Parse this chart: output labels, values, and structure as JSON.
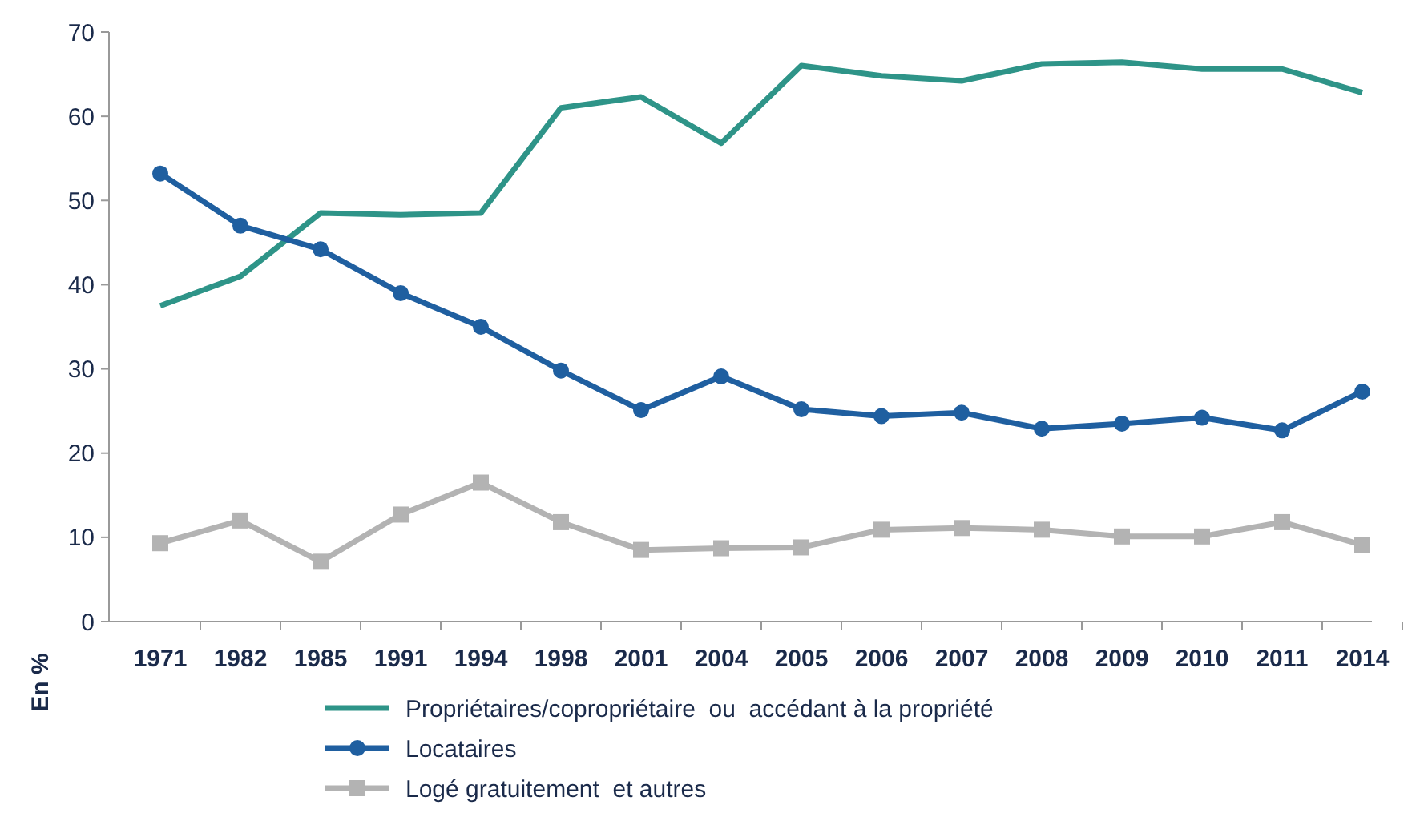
{
  "chart_data": {
    "type": "line",
    "ylabel": "En %",
    "categories": [
      "1971",
      "1982",
      "1985",
      "1991",
      "1994",
      "1998",
      "2001",
      "2004",
      "2005",
      "2006",
      "2007",
      "2008",
      "2009",
      "2010",
      "2011",
      "2014"
    ],
    "series": [
      {
        "name": "Propriétaires/copropriétaire  ou  accédant à la propriété",
        "color": "#2e9488",
        "marker": "none",
        "values": [
          37.5,
          41,
          48.5,
          48.3,
          48.5,
          61,
          62.3,
          56.8,
          66,
          64.8,
          64.2,
          66.2,
          66.4,
          65.6,
          65.6,
          62.8
        ]
      },
      {
        "name": "Locataires",
        "color": "#1f5fa0",
        "marker": "circle",
        "values": [
          53.2,
          47,
          44.2,
          39,
          35,
          29.8,
          25.1,
          29.1,
          25.2,
          24.4,
          24.8,
          22.9,
          23.5,
          24.2,
          22.7,
          27.3
        ]
      },
      {
        "name": "Logé gratuitement  et autres",
        "color": "#b3b3b3",
        "marker": "square",
        "values": [
          9.3,
          12,
          7.1,
          12.7,
          16.5,
          11.8,
          8.5,
          8.7,
          8.8,
          10.9,
          11.1,
          10.9,
          10.1,
          10.1,
          11.8,
          9.1
        ]
      }
    ],
    "ylim": [
      0,
      70
    ],
    "yticks": [
      0,
      10,
      20,
      30,
      40,
      50,
      60,
      70
    ],
    "grid": false,
    "legend": "bottom",
    "line_style": "solid"
  }
}
